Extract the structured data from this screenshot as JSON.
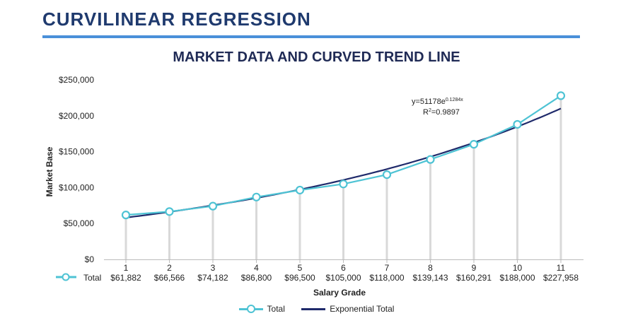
{
  "page": {
    "title": "CURVILINEAR REGRESSION"
  },
  "chart_data": {
    "type": "line",
    "title": "MARKET DATA AND CURVED TREND LINE",
    "xlabel": "Salary Grade",
    "ylabel": "Market Base",
    "ylim": [
      0,
      250000
    ],
    "yticks": [
      "$0",
      "$50,000",
      "$100,000",
      "$150,000",
      "$200,000",
      "$250,000"
    ],
    "ytick_values": [
      0,
      50000,
      100000,
      150000,
      200000,
      250000
    ],
    "categories": [
      "1",
      "2",
      "3",
      "4",
      "5",
      "6",
      "7",
      "8",
      "9",
      "10",
      "11"
    ],
    "table_row_label": "Total",
    "table_values": [
      "$61,882",
      "$66,566",
      "$74,182",
      "$86,800",
      "$96,500",
      "$105,000",
      "$118,000",
      "$139,143",
      "$160,291",
      "$188,000",
      "$227,958"
    ],
    "series": [
      {
        "name": "Total",
        "color": "#4ec3d4",
        "values": [
          61882,
          66566,
          74182,
          86800,
          96500,
          105000,
          118000,
          139143,
          160291,
          188000,
          227958
        ]
      },
      {
        "name": "Exponential Total",
        "color": "#1f2a6b",
        "type": "trendline-exponential",
        "a": 51178,
        "b": 0.1284
      }
    ],
    "annotation": {
      "equation_base": "y=51178e",
      "equation_exp": "0.1284x",
      "r2_prefix": "R",
      "r2_sup": "2",
      "r2_value": "=0.9897"
    },
    "grid": false,
    "drop_lines": true,
    "drop_line_color": "#d9d9d9",
    "legend_position": "bottom"
  }
}
